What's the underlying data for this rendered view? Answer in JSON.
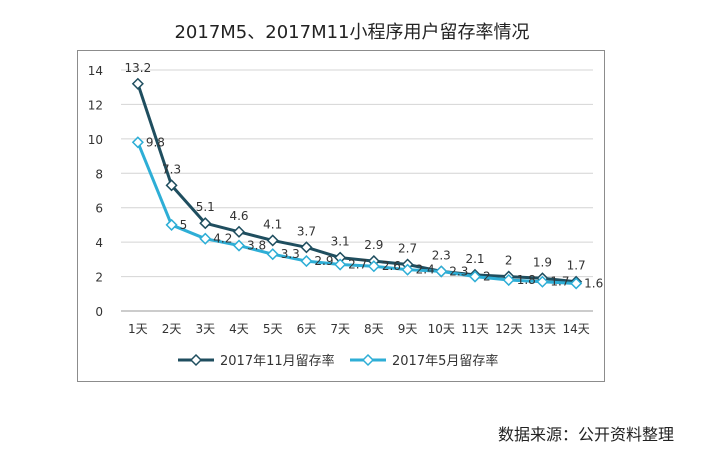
{
  "page": {
    "title": "2017M5、2017M11小程序用户留存率情况",
    "source": "数据来源：公开资料整理"
  },
  "chart_data": {
    "type": "line",
    "title": "2017M5、2017M11小程序用户留存率情况",
    "xlabel": "",
    "ylabel": "",
    "ylim": [
      0,
      14
    ],
    "yticks": [
      0,
      2,
      4,
      6,
      8,
      10,
      12,
      14
    ],
    "grid": true,
    "legend": "bottom",
    "categories": [
      "1天",
      "2天",
      "3天",
      "4天",
      "5天",
      "6天",
      "7天",
      "8天",
      "9天",
      "10天",
      "11天",
      "12天",
      "13天",
      "14天"
    ],
    "series": [
      {
        "name": "2017年11月留存率",
        "color": "#1f4e5f",
        "values": [
          13.2,
          7.3,
          5.1,
          4.6,
          4.1,
          3.7,
          3.1,
          2.9,
          2.7,
          2.3,
          2.1,
          2,
          1.9,
          1.7
        ]
      },
      {
        "name": "2017年5月留存率",
        "color": "#2eaed6",
        "values": [
          9.8,
          5,
          4.2,
          3.8,
          3.3,
          2.9,
          2.7,
          2.6,
          2.4,
          2.3,
          2,
          1.8,
          1.7,
          1.6
        ]
      }
    ]
  }
}
